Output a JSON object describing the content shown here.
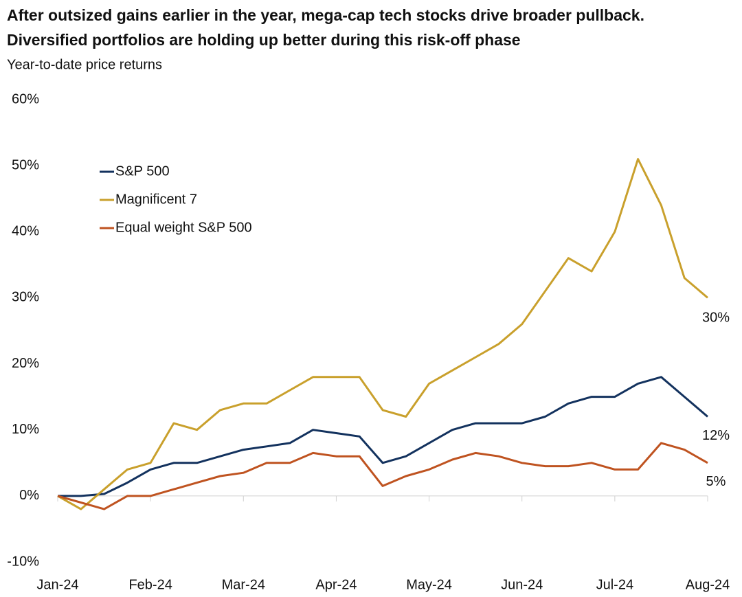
{
  "chart_data": {
    "type": "line",
    "title": [
      "After outsized gains earlier in the year, mega-cap tech stocks drive broader pullback.",
      "Diversified portfolios are holding up better during this risk-off phase"
    ],
    "subtitle": "Year-to-date price returns",
    "categories": [
      "Jan-24",
      null,
      null,
      null,
      "Feb-24",
      null,
      null,
      null,
      "Mar-24",
      null,
      null,
      null,
      "Apr-24",
      null,
      null,
      null,
      "May-24",
      null,
      null,
      null,
      "Jun-24",
      null,
      null,
      null,
      "Jul-24",
      null,
      null,
      null,
      "Aug-24"
    ],
    "series": [
      {
        "name": "S&P 500",
        "color": "#13325e",
        "values": [
          0,
          0,
          0.3,
          2,
          4,
          5,
          5,
          6,
          7,
          7.5,
          8,
          10,
          9.5,
          9,
          5,
          6,
          8,
          10,
          11,
          11,
          11,
          12,
          14,
          15,
          15,
          17,
          18,
          15,
          12
        ],
        "value_labels": [
          null,
          null,
          null,
          null,
          null,
          null,
          null,
          null,
          null,
          null,
          null,
          null,
          null,
          null,
          null,
          null,
          null,
          null,
          null,
          null,
          null,
          null,
          null,
          null,
          null,
          null,
          null,
          null,
          "12%"
        ]
      },
      {
        "name": "Magnificent 7",
        "color": "#c9a02c",
        "values": [
          0,
          -2,
          1,
          4,
          5,
          11,
          10,
          13,
          14,
          14,
          16,
          18,
          18,
          18,
          13,
          12,
          17,
          19,
          21,
          23,
          26,
          31,
          36,
          34,
          40,
          51,
          44,
          33,
          30
        ],
        "value_labels": [
          null,
          null,
          null,
          null,
          null,
          null,
          null,
          null,
          null,
          null,
          null,
          null,
          null,
          null,
          null,
          null,
          null,
          null,
          null,
          null,
          null,
          null,
          null,
          null,
          null,
          null,
          null,
          null,
          "30%"
        ]
      },
      {
        "name": "Equal weight S&P 500",
        "color": "#bf5320",
        "values": [
          0,
          -1,
          -2,
          0,
          0,
          1,
          2,
          3,
          3.5,
          5,
          5,
          6.5,
          6,
          6,
          1.5,
          3,
          4,
          5.5,
          6.5,
          6,
          5,
          4.5,
          4.5,
          5,
          4,
          4,
          8,
          7,
          5
        ],
        "value_labels": [
          null,
          null,
          null,
          null,
          null,
          null,
          null,
          null,
          null,
          null,
          null,
          null,
          null,
          null,
          null,
          null,
          null,
          null,
          null,
          null,
          null,
          null,
          null,
          null,
          null,
          null,
          null,
          null,
          "5%"
        ]
      }
    ],
    "ylim": [
      -10,
      60
    ],
    "yticks": [
      {
        "value": -10,
        "label": "-10%"
      },
      {
        "value": 0,
        "label": "0%"
      },
      {
        "value": 10,
        "label": "10%"
      },
      {
        "value": 20,
        "label": "20%"
      },
      {
        "value": 30,
        "label": "30%"
      },
      {
        "value": 40,
        "label": "40%"
      },
      {
        "value": 50,
        "label": "50%"
      },
      {
        "value": 60,
        "label": "60%"
      }
    ],
    "grid": false
  }
}
